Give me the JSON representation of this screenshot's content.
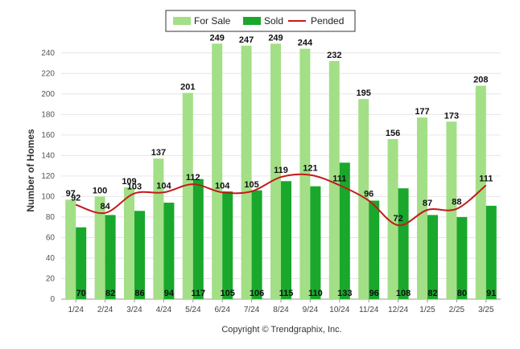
{
  "chart_data": {
    "type": "bar",
    "ylabel": "Number of Homes",
    "ylim": [
      0,
      250
    ],
    "yticks": [
      0,
      20,
      40,
      60,
      80,
      100,
      120,
      140,
      160,
      180,
      200,
      220,
      240
    ],
    "categories": [
      "1/24",
      "2/24",
      "3/24",
      "4/24",
      "5/24",
      "6/24",
      "7/24",
      "8/24",
      "9/24",
      "10/24",
      "11/24",
      "12/24",
      "1/25",
      "2/25",
      "3/25"
    ],
    "series": [
      {
        "name": "For Sale",
        "kind": "bar",
        "color": "#a3df86",
        "values": [
          97,
          100,
          109,
          137,
          201,
          249,
          247,
          249,
          244,
          232,
          195,
          156,
          177,
          173,
          208
        ]
      },
      {
        "name": "Sold",
        "kind": "bar",
        "color": "#19a82c",
        "values": [
          70,
          82,
          86,
          94,
          117,
          105,
          106,
          115,
          110,
          133,
          96,
          108,
          82,
          80,
          91
        ]
      },
      {
        "name": "Pended",
        "kind": "line",
        "color": "#c41a1a",
        "values": [
          92,
          84,
          103,
          104,
          112,
          104,
          105,
          119,
          121,
          111,
          96,
          72,
          87,
          88,
          111
        ]
      }
    ],
    "legend_position": "top-center",
    "grid": true
  },
  "footer": {
    "copyright": "Copyright © Trendgraphix, Inc."
  }
}
